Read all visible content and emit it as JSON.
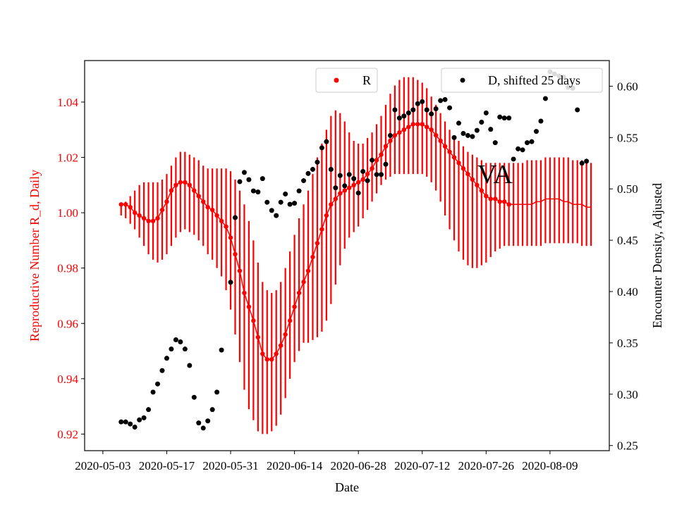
{
  "chart_data": {
    "type": "scatter",
    "annotation": "VA",
    "xlabel": "Date",
    "ylabel_left": "Reproductive Number R_d, Daily",
    "ylabel_right": "Encounter Density, Adjusted",
    "x_ticks": [
      "2020-05-03",
      "2020-05-17",
      "2020-05-31",
      "2020-06-14",
      "2020-06-28",
      "2020-07-12",
      "2020-07-26",
      "2020-08-09"
    ],
    "y_left_ticks": [
      "0.92",
      "0.94",
      "0.96",
      "0.98",
      "1.00",
      "1.02",
      "1.04"
    ],
    "y_right_ticks": [
      "0.25",
      "0.30",
      "0.35",
      "0.40",
      "0.45",
      "0.50",
      "0.55",
      "0.60"
    ],
    "x_range": [
      "2020-04-29",
      "2020-08-22"
    ],
    "y_left_range": [
      0.914,
      1.055
    ],
    "y_right_range": [
      0.245,
      0.625
    ],
    "left_axis_color": "#ff0000",
    "legend": [
      {
        "label": "R",
        "color": "#ff0000",
        "position": "top-center"
      },
      {
        "label": "D, shifted 25 days",
        "color": "#000000",
        "position": "top-right"
      }
    ],
    "series": [
      {
        "name": "R",
        "axis": "left",
        "color": "#ff0000",
        "x_start": "2020-05-07",
        "values": [
          1.003,
          1.003,
          1.002,
          1.0,
          0.999,
          0.998,
          0.997,
          0.997,
          0.998,
          1.001,
          1.004,
          1.008,
          1.01,
          1.011,
          1.011,
          1.01,
          1.008,
          1.006,
          1.004,
          1.002,
          1.001,
          0.999,
          0.997,
          0.995,
          0.991,
          0.985,
          0.979,
          0.971,
          0.966,
          0.961,
          0.955,
          0.949,
          0.947,
          0.947,
          0.949,
          0.952,
          0.956,
          0.961,
          0.966,
          0.971,
          0.975,
          0.979,
          0.984,
          0.989,
          0.994,
          0.999,
          1.003,
          1.005,
          1.007,
          1.008,
          1.009,
          1.01,
          1.011,
          1.012,
          1.014,
          1.016,
          1.019,
          1.021,
          1.024,
          1.026,
          1.028,
          1.029,
          1.03,
          1.031,
          1.032,
          1.032,
          1.032,
          1.031,
          1.03,
          1.028,
          1.026,
          1.024,
          1.022,
          1.02,
          1.018,
          1.016,
          1.014,
          1.012,
          1.01,
          1.008,
          1.006,
          1.005,
          1.005,
          1.004,
          1.004,
          1.003,
          1.003,
          1.003,
          1.003,
          1.003,
          1.003,
          1.004,
          1.004,
          1.005,
          1.005,
          1.005,
          1.005,
          1.004,
          1.004,
          1.003,
          1.003,
          1.003,
          1.002,
          1.002
        ],
        "marker_count": 86,
        "error_lower": [
          0.999,
          0.998,
          0.996,
          0.994,
          0.991,
          0.988,
          0.985,
          0.983,
          0.982,
          0.983,
          0.985,
          0.988,
          0.991,
          0.993,
          0.994,
          0.993,
          0.992,
          0.99,
          0.988,
          0.985,
          0.983,
          0.98,
          0.977,
          0.972,
          0.965,
          0.956,
          0.946,
          0.936,
          0.929,
          0.925,
          0.921,
          0.92,
          0.92,
          0.921,
          0.923,
          0.927,
          0.933,
          0.94,
          0.946,
          0.95,
          0.953,
          0.953,
          0.954,
          0.955,
          0.957,
          0.961,
          0.967,
          0.974,
          0.981,
          0.987,
          0.991,
          0.993,
          0.995,
          0.998,
          1.001,
          1.004,
          1.007,
          1.01,
          1.012,
          1.013,
          1.014,
          1.014,
          1.014,
          1.014,
          1.014,
          1.014,
          1.014,
          1.013,
          1.011,
          1.008,
          1.004,
          0.999,
          0.994,
          0.99,
          0.986,
          0.983,
          0.981,
          0.98,
          0.98,
          0.981,
          0.982,
          0.984,
          0.986,
          0.987,
          0.988,
          0.988,
          0.988,
          0.988,
          0.988,
          0.988,
          0.988,
          0.988,
          0.988,
          0.989,
          0.989,
          0.989,
          0.989,
          0.989,
          0.989,
          0.989,
          0.989,
          0.988,
          0.988,
          0.988
        ],
        "error_upper": [
          1.003,
          1.004,
          1.006,
          1.008,
          1.01,
          1.011,
          1.011,
          1.011,
          1.011,
          1.012,
          1.014,
          1.017,
          1.02,
          1.022,
          1.022,
          1.021,
          1.02,
          1.019,
          1.017,
          1.016,
          1.016,
          1.016,
          1.016,
          1.016,
          1.015,
          1.012,
          1.008,
          1.003,
          0.997,
          0.99,
          0.982,
          0.975,
          0.972,
          0.971,
          0.972,
          0.975,
          0.98,
          0.986,
          0.992,
          0.998,
          1.003,
          1.008,
          1.014,
          1.02,
          1.025,
          1.03,
          1.035,
          1.037,
          1.036,
          1.033,
          1.029,
          1.026,
          1.025,
          1.025,
          1.027,
          1.029,
          1.032,
          1.035,
          1.039,
          1.043,
          1.046,
          1.048,
          1.049,
          1.049,
          1.049,
          1.048,
          1.047,
          1.045,
          1.042,
          1.039,
          1.036,
          1.033,
          1.03,
          1.028,
          1.026,
          1.024,
          1.022,
          1.021,
          1.02,
          1.019,
          1.018,
          1.018,
          1.018,
          1.018,
          1.018,
          1.018,
          1.018,
          1.018,
          1.018,
          1.019,
          1.019,
          1.019,
          1.019,
          1.02,
          1.02,
          1.02,
          1.02,
          1.02,
          1.02,
          1.019,
          1.019,
          1.019,
          1.018,
          1.018
        ]
      },
      {
        "name": "D, shifted 25 days",
        "axis": "right",
        "color": "#000000",
        "points": [
          [
            "2020-05-07",
            0.273
          ],
          [
            "2020-05-08",
            0.273
          ],
          [
            "2020-05-09",
            0.271
          ],
          [
            "2020-05-10",
            0.268
          ],
          [
            "2020-05-11",
            0.275
          ],
          [
            "2020-05-12",
            0.277
          ],
          [
            "2020-05-13",
            0.285
          ],
          [
            "2020-05-14",
            0.302
          ],
          [
            "2020-05-15",
            0.31
          ],
          [
            "2020-05-16",
            0.323
          ],
          [
            "2020-05-17",
            0.335
          ],
          [
            "2020-05-18",
            0.344
          ],
          [
            "2020-05-19",
            0.353
          ],
          [
            "2020-05-20",
            0.351
          ],
          [
            "2020-05-21",
            0.344
          ],
          [
            "2020-05-22",
            0.328
          ],
          [
            "2020-05-23",
            0.297
          ],
          [
            "2020-05-24",
            0.272
          ],
          [
            "2020-05-25",
            0.267
          ],
          [
            "2020-05-26",
            0.274
          ],
          [
            "2020-05-27",
            0.285
          ],
          [
            "2020-05-28",
            0.302
          ],
          [
            "2020-05-29",
            0.343
          ],
          [
            "2020-05-31",
            0.409
          ],
          [
            "2020-06-01",
            0.472
          ],
          [
            "2020-06-02",
            0.507
          ],
          [
            "2020-06-03",
            0.516
          ],
          [
            "2020-06-04",
            0.509
          ],
          [
            "2020-06-05",
            0.498
          ],
          [
            "2020-06-06",
            0.497
          ],
          [
            "2020-06-07",
            0.51
          ],
          [
            "2020-06-08",
            0.487
          ],
          [
            "2020-06-09",
            0.479
          ],
          [
            "2020-06-10",
            0.474
          ],
          [
            "2020-06-11",
            0.487
          ],
          [
            "2020-06-12",
            0.495
          ],
          [
            "2020-06-13",
            0.485
          ],
          [
            "2020-06-14",
            0.486
          ],
          [
            "2020-06-15",
            0.498
          ],
          [
            "2020-06-16",
            0.508
          ],
          [
            "2020-06-17",
            0.515
          ],
          [
            "2020-06-18",
            0.519
          ],
          [
            "2020-06-19",
            0.526
          ],
          [
            "2020-06-20",
            0.54
          ],
          [
            "2020-06-21",
            0.546
          ],
          [
            "2020-06-22",
            0.519
          ],
          [
            "2020-06-23",
            0.501
          ],
          [
            "2020-06-24",
            0.513
          ],
          [
            "2020-06-25",
            0.503
          ],
          [
            "2020-06-26",
            0.514
          ],
          [
            "2020-06-27",
            0.51
          ],
          [
            "2020-06-28",
            0.496
          ],
          [
            "2020-06-29",
            0.517
          ],
          [
            "2020-06-30",
            0.508
          ],
          [
            "2020-07-01",
            0.528
          ],
          [
            "2020-07-02",
            0.514
          ],
          [
            "2020-07-03",
            0.514
          ],
          [
            "2020-07-04",
            0.524
          ],
          [
            "2020-07-05",
            0.552
          ],
          [
            "2020-07-06",
            0.577
          ],
          [
            "2020-07-07",
            0.569
          ],
          [
            "2020-07-08",
            0.571
          ],
          [
            "2020-07-09",
            0.574
          ],
          [
            "2020-07-10",
            0.577
          ],
          [
            "2020-07-11",
            0.583
          ],
          [
            "2020-07-12",
            0.585
          ],
          [
            "2020-07-13",
            0.577
          ],
          [
            "2020-07-14",
            0.573
          ],
          [
            "2020-07-15",
            0.578
          ],
          [
            "2020-07-16",
            0.586
          ],
          [
            "2020-07-17",
            0.587
          ],
          [
            "2020-07-18",
            0.579
          ],
          [
            "2020-07-19",
            0.55
          ],
          [
            "2020-07-20",
            0.564
          ],
          [
            "2020-07-21",
            0.554
          ],
          [
            "2020-07-22",
            0.552
          ],
          [
            "2020-07-23",
            0.551
          ],
          [
            "2020-07-24",
            0.557
          ],
          [
            "2020-07-25",
            0.565
          ],
          [
            "2020-07-26",
            0.574
          ],
          [
            "2020-07-27",
            0.558
          ],
          [
            "2020-07-28",
            0.545
          ],
          [
            "2020-07-29",
            0.57
          ],
          [
            "2020-07-30",
            0.569
          ],
          [
            "2020-07-31",
            0.569
          ],
          [
            "2020-08-01",
            0.529
          ],
          [
            "2020-08-02",
            0.539
          ],
          [
            "2020-08-03",
            0.538
          ],
          [
            "2020-08-04",
            0.545
          ],
          [
            "2020-08-05",
            0.546
          ],
          [
            "2020-08-06",
            0.556
          ],
          [
            "2020-08-07",
            0.566
          ],
          [
            "2020-08-08",
            0.588
          ],
          [
            "2020-08-09",
            0.614
          ],
          [
            "2020-08-10",
            0.612
          ],
          [
            "2020-08-11",
            0.61
          ],
          [
            "2020-08-12",
            0.609
          ],
          [
            "2020-08-13",
            0.599
          ],
          [
            "2020-08-14",
            0.598
          ],
          [
            "2020-08-15",
            0.577
          ],
          [
            "2020-08-16",
            0.525
          ],
          [
            "2020-08-17",
            0.527
          ]
        ]
      }
    ]
  }
}
